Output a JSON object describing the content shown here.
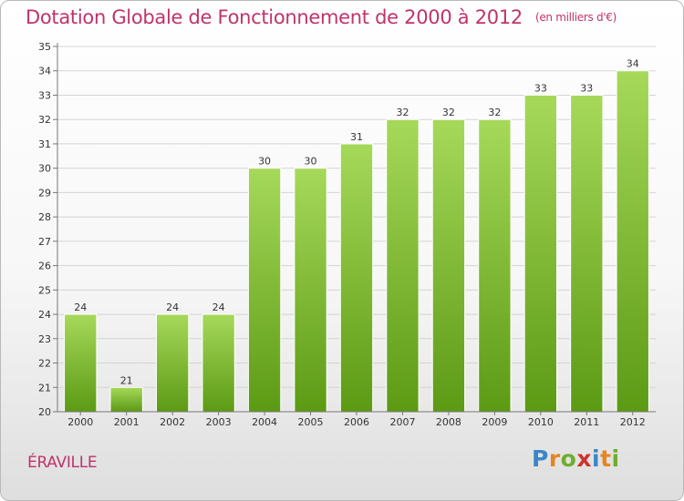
{
  "header": {
    "title": "Dotation Globale de Fonctionnement de 2000 à 2012",
    "unit": "(en milliers d'€)"
  },
  "footer": {
    "commune": "ÉRAVILLE",
    "logo": {
      "letters": [
        "P",
        "r",
        "o",
        "x",
        "i",
        "t",
        "i"
      ],
      "colors": [
        "#3a86c8",
        "#e8841f",
        "#6dae2e",
        "#d0322c",
        "#3a86c8",
        "#e8841f",
        "#6dae2e"
      ]
    }
  },
  "colors": {
    "bar_top": "#a6d95a",
    "bar_bottom": "#5c9a14",
    "axis": "#777777",
    "grid": "#d4d4d4",
    "text": "#333333"
  },
  "chart_data": {
    "type": "bar",
    "title": "Dotation Globale de Fonctionnement de 2000 à 2012",
    "subtitle": "(en milliers d'€)",
    "xlabel": "",
    "ylabel": "",
    "categories": [
      "2000",
      "2001",
      "2002",
      "2003",
      "2004",
      "2005",
      "2006",
      "2007",
      "2008",
      "2009",
      "2010",
      "2011",
      "2012"
    ],
    "values": [
      24,
      21,
      24,
      24,
      30,
      30,
      31,
      32,
      32,
      32,
      33,
      33,
      34
    ],
    "ylim": [
      20,
      35
    ],
    "yticks": [
      20,
      21,
      22,
      23,
      24,
      25,
      26,
      27,
      28,
      29,
      30,
      31,
      32,
      33,
      34,
      35
    ],
    "grid": true,
    "legend": "none"
  }
}
